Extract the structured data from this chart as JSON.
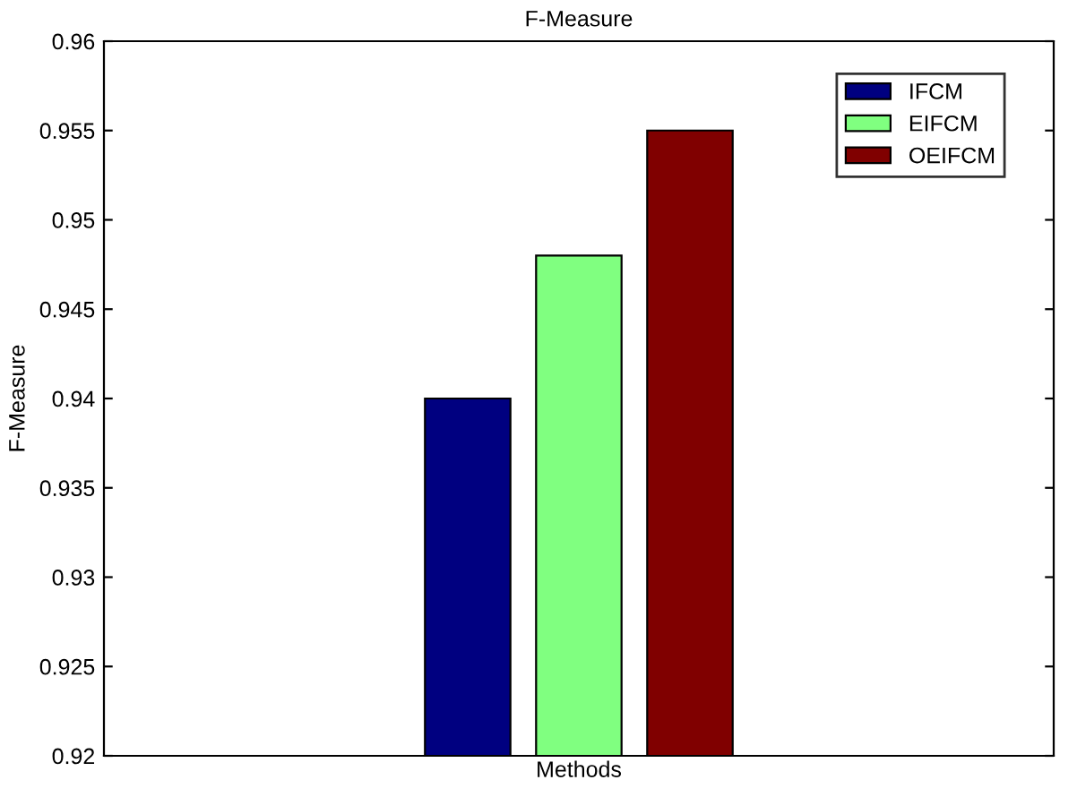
{
  "chart_data": {
    "type": "bar",
    "title": "F-Measure",
    "xlabel": "Methods",
    "ylabel": "F-Measure",
    "categories": [
      null
    ],
    "series": [
      {
        "name": "IFCM",
        "color": "#000080",
        "values": [
          0.94
        ]
      },
      {
        "name": "EIFCM",
        "color": "#80ff80",
        "values": [
          0.948
        ]
      },
      {
        "name": "OEIFCM",
        "color": "#800000",
        "values": [
          0.955
        ]
      }
    ],
    "ylim": [
      0.92,
      0.96
    ],
    "yticks": [
      0.92,
      0.925,
      0.93,
      0.935,
      0.94,
      0.945,
      0.95,
      0.955,
      0.96
    ],
    "tick_labels": "y",
    "legend": "top right",
    "grid": false
  }
}
